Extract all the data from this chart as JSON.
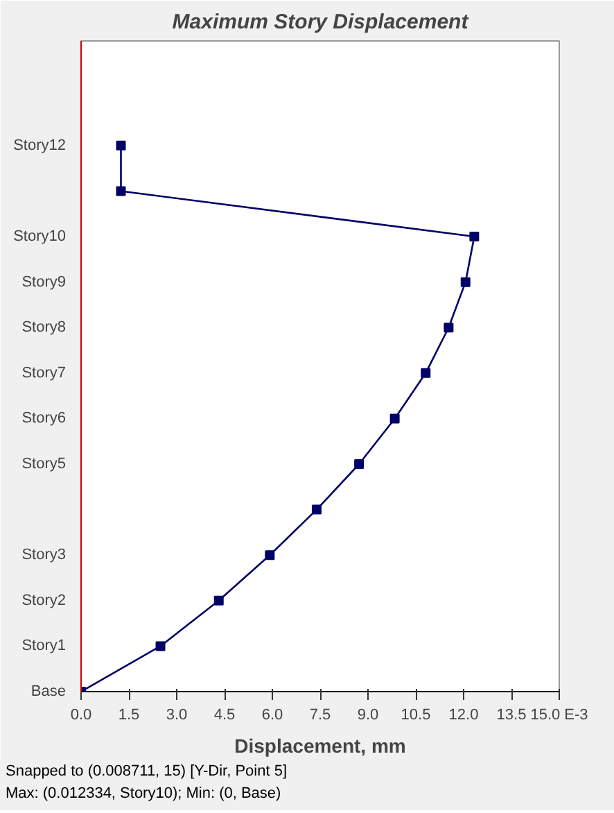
{
  "chart_data": {
    "type": "line",
    "orientation": "horizontal",
    "title": "Maximum Story Displacement",
    "xlabel": "Displacement, mm",
    "categories": [
      "Story12",
      null,
      "Story10",
      "Story9",
      "Story8",
      "Story7",
      "Story6",
      "Story5",
      null,
      "Story3",
      "Story2",
      "Story1",
      "Base"
    ],
    "series": [
      {
        "color": "#000066",
        "values": [
          1.25,
          1.25,
          12.334,
          12.06,
          11.53,
          10.81,
          9.84,
          8.72,
          7.39,
          5.92,
          4.32,
          2.49,
          0
        ]
      }
    ],
    "marker": "square",
    "line_style": "solid",
    "xlim": [
      0,
      15
    ],
    "xticks": [
      {
        "value": 0,
        "label": "0.0"
      },
      {
        "value": 1.5,
        "label": "1.5"
      },
      {
        "value": 3,
        "label": "3.0"
      },
      {
        "value": 4.5,
        "label": "4.5"
      },
      {
        "value": 6,
        "label": "6.0"
      },
      {
        "value": 7.5,
        "label": "7.5"
      },
      {
        "value": 9,
        "label": "9.0"
      },
      {
        "value": 10.5,
        "label": "10.5"
      },
      {
        "value": 12,
        "label": "12.0"
      },
      {
        "value": 13.5,
        "label": "13.5"
      },
      {
        "value": 15,
        "label": "15.0 E-3"
      }
    ],
    "annotations": [
      "Snapped to (0.008711, 15)   [Y-Dir, Point 5]",
      "Max: (0.012334, Story10);   Min: (0, Base)"
    ]
  }
}
